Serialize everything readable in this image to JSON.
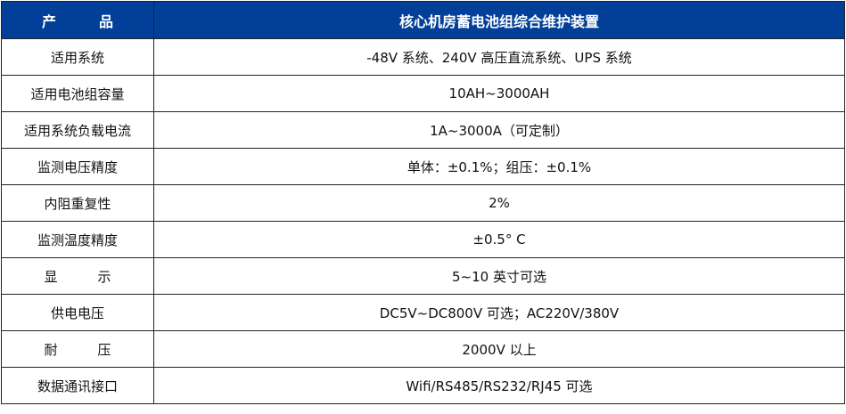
{
  "header": {
    "label": "产　　　品",
    "product": "核心机房蓄电池组综合维护装置",
    "bg_color": "#013f98"
  },
  "rows": [
    {
      "label": "适用系统",
      "value": "-48V 系统、240V 高压直流系统、UPS 系统"
    },
    {
      "label": "适用电池组容量",
      "value": "10AH~3000AH"
    },
    {
      "label": "适用系统负载电流",
      "value": "1A~3000A（可定制）"
    },
    {
      "label": "监测电压精度",
      "value": "单体：±0.1%；组压：±0.1%"
    },
    {
      "label": "内阻重复性",
      "value": "2%"
    },
    {
      "label": "监测温度精度",
      "value": "±0.5° C"
    },
    {
      "label": "显　　　示",
      "value": "5~10 英寸可选"
    },
    {
      "label": "供电电压",
      "value": "DC5V~DC800V 可选；AC220V/380V"
    },
    {
      "label": "耐　　　压",
      "value": "2000V 以上"
    },
    {
      "label": "数据通讯接口",
      "value": "Wifi/RS485/RS232/RJ45 可选"
    }
  ]
}
